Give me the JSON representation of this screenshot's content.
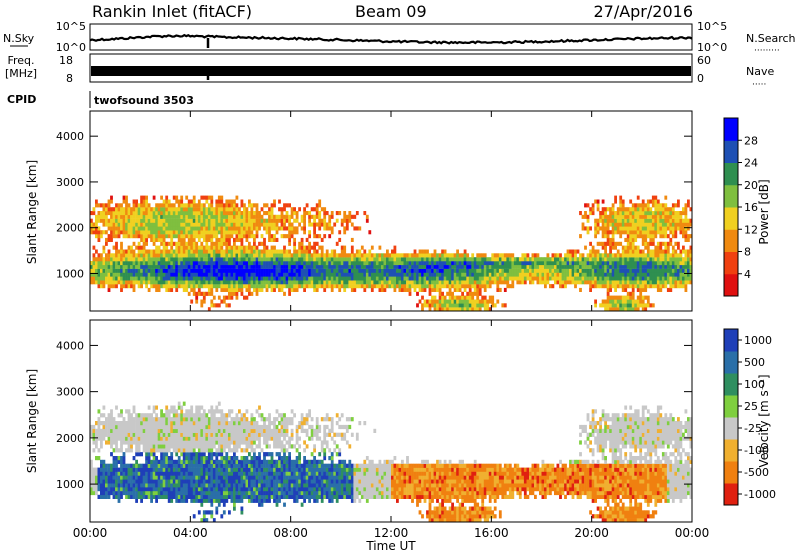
{
  "header": {
    "station": "Rankin Inlet (fitACF)",
    "beam": "Beam 09",
    "date": "27/Apr/2016"
  },
  "strips": {
    "nsky_label": "N.Sky",
    "nsky_ticks": [
      "10^5",
      "10^0"
    ],
    "nsearch_label": "N.Search",
    "nsearch_ticks": [
      "10^5",
      "10^0"
    ],
    "freq_label": "Freq.",
    "freq_unit": "[MHz]",
    "freq_ticks": [
      "18",
      "8"
    ],
    "nave_label": "Nave",
    "nave_ticks": [
      "60",
      "0"
    ],
    "cpid_label": "CPID",
    "cpid_value": "twofsound 3503"
  },
  "x_axis": {
    "label": "Time UT",
    "ticks": [
      "00:00",
      "04:00",
      "08:00",
      "12:00",
      "16:00",
      "20:00",
      "00:00"
    ],
    "range_hours": [
      0,
      24
    ]
  },
  "chart_data": [
    {
      "type": "heatmap",
      "name": "power",
      "ylabel": "Slant Range [km]",
      "yticks": [
        1000,
        2000,
        3000,
        4000
      ],
      "ylim": [
        180,
        4550
      ],
      "colorbar_label": "Power [dB]",
      "colorbar_ticks": [
        "4",
        "8",
        "12",
        "16",
        "20",
        "24",
        "28"
      ],
      "colors": [
        "#0000ff",
        "#1e50b4",
        "#2f8f50",
        "#7fbf3f",
        "#f0d020",
        "#f08a10",
        "#f04010",
        "#e01010"
      ],
      "range": [
        0,
        32
      ]
    },
    {
      "type": "heatmap",
      "name": "velocity",
      "ylabel": "Slant Range [km]",
      "yticks": [
        1000,
        2000,
        3000,
        4000
      ],
      "ylim": [
        180,
        4550
      ],
      "colorbar_label": "Velocity [m s⁻¹]",
      "colorbar_ticks": [
        "1000",
        "500",
        "100",
        "25",
        "-25",
        "-100",
        "-500",
        "-1000"
      ],
      "colors": [
        "#1f3fb8",
        "#2a6fa8",
        "#2f8f60",
        "#7fcf3f",
        "#c8c8c8",
        "#f0b030",
        "#f08010",
        "#e02010"
      ]
    }
  ]
}
